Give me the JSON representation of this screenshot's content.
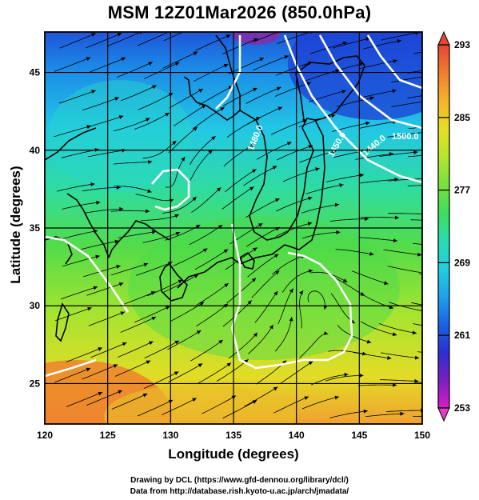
{
  "title": "MSM 12Z01Mar2026 (850.0hPa)",
  "credit": {
    "line1": "Drawing by DCL (https://www.gfd-dennou.org/library/dcl/)",
    "line2": "Data from http://database.rish.kyoto-u.ac.jp/arch/jmadata/"
  },
  "colors": {
    "ramp": [
      "#d81cc8",
      "#7a1fc0",
      "#2c2fd0",
      "#1a63e6",
      "#1ea2ec",
      "#22cfe0",
      "#29dcb0",
      "#3ede5c",
      "#78e13a",
      "#b7e52e",
      "#e7dd24",
      "#f5b32a",
      "#ef7d2e",
      "#e64633"
    ],
    "contour": "#ffffff",
    "streamline": "#000000"
  },
  "chart_data": {
    "type": "heatmap",
    "title": "MSM 12Z01Mar2026 (850.0hPa)",
    "xlabel": "Longitude (degrees)",
    "ylabel": "Latitude  (degrees)",
    "xlim": [
      120,
      150
    ],
    "ylim": [
      22.4,
      47.6
    ],
    "xticks": [
      120,
      125,
      130,
      135,
      140,
      145,
      150
    ],
    "yticks": [
      25,
      30,
      35,
      40,
      45
    ],
    "grid": true,
    "colorbar": {
      "range": [
        253,
        293
      ],
      "ticks": [
        253,
        261,
        269,
        277,
        285,
        293
      ]
    },
    "contour_labels": [
      "1480.0",
      "1440.0",
      "1450.0",
      "1500.0"
    ],
    "overlays": [
      "streamlines",
      "coastlines",
      "geopotential height contours"
    ]
  }
}
